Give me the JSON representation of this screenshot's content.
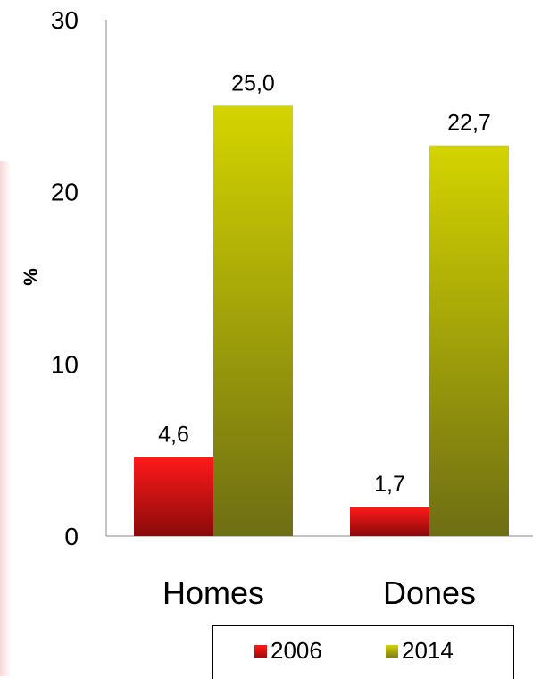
{
  "chart_data": {
    "type": "bar",
    "categories": [
      "Homes",
      "Dones"
    ],
    "series": [
      {
        "name": "2006",
        "values": [
          4.6,
          1.7
        ],
        "labels": [
          "4,6",
          "1,7"
        ],
        "color": "#dd0000"
      },
      {
        "name": "2014",
        "values": [
          25.0,
          22.7
        ],
        "labels": [
          "25,0",
          "22,7"
        ],
        "color": "#b8b800"
      }
    ],
    "ylabel": "%",
    "ylim": [
      0,
      30
    ],
    "yticks": [
      0,
      10,
      20,
      30
    ],
    "legend": "bottom-right",
    "grid": false
  }
}
